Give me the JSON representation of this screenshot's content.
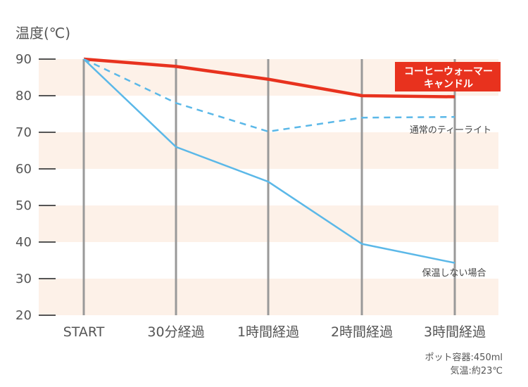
{
  "chart_data": {
    "type": "line",
    "ylabel": "温度(℃)",
    "ylim": [
      20,
      90
    ],
    "yticks": [
      90,
      80,
      70,
      60,
      50,
      40,
      30,
      20
    ],
    "categories": [
      "START",
      "30分経過",
      "1時間経過",
      "2時間経過",
      "3時間経過"
    ],
    "band_color": "#fdf1e8",
    "series": [
      {
        "name": "コーヒーウォーマー キャンドル",
        "name_lines": [
          "コーヒーウォーマー",
          "キャンドル"
        ],
        "values": [
          90,
          88,
          84.5,
          80,
          79.7
        ],
        "color": "#e8321e",
        "style": "solid-thick",
        "label_style": "badge"
      },
      {
        "name": "通常のティーライト",
        "name_lines": [
          "通常のティーライト"
        ],
        "values": [
          90,
          78,
          70.2,
          74,
          74.2
        ],
        "color": "#5bb8e8",
        "style": "dashed",
        "label_style": "text"
      },
      {
        "name": "保温しない場合",
        "name_lines": [
          "保温しない場合"
        ],
        "values": [
          90,
          66,
          56.5,
          39.5,
          34.3
        ],
        "color": "#5bb8e8",
        "style": "solid",
        "label_style": "text"
      }
    ],
    "notes": [
      "ポット容器:450ml",
      "気温:約23℃"
    ]
  }
}
